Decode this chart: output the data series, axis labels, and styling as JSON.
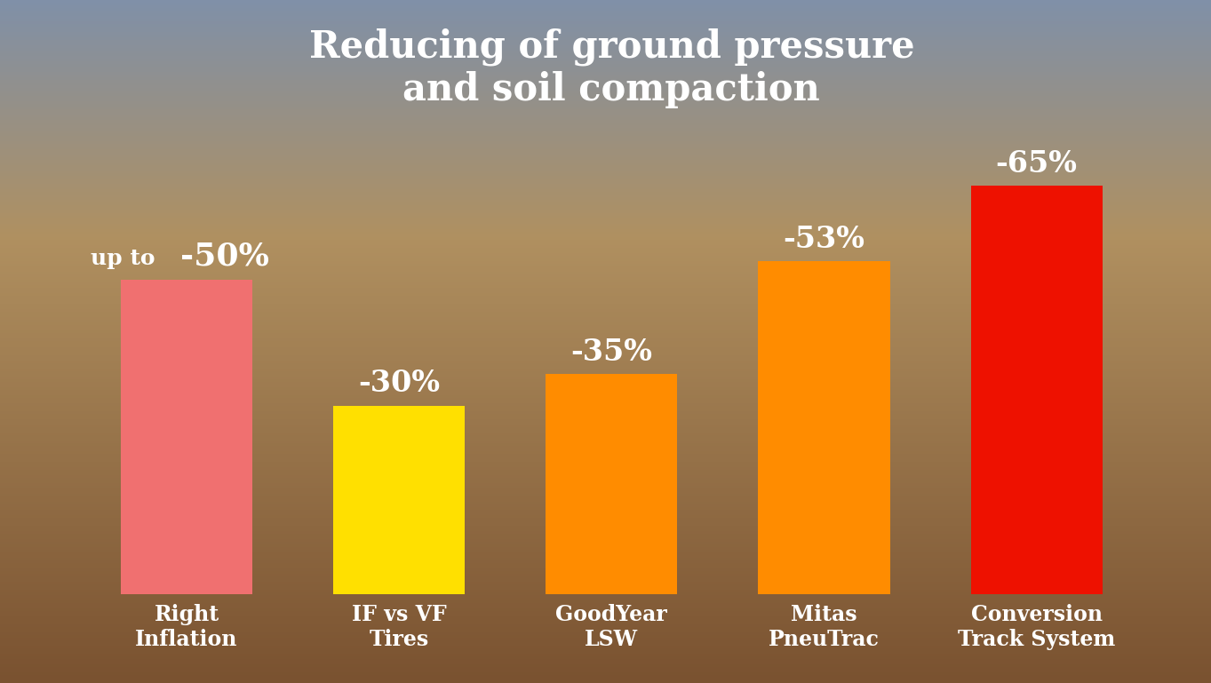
{
  "title_line1": "Reducing of ground pressure",
  "title_line2": "and soil compaction",
  "categories": [
    "Right\nInflation",
    "IF vs VF\nTires",
    "GoodYear\nLSW",
    "Mitas\nPneuTrac",
    "Conversion\nTrack System"
  ],
  "values": [
    50,
    30,
    35,
    53,
    65
  ],
  "labels_prefix": [
    "up to ",
    "",
    "",
    "",
    ""
  ],
  "labels_value": [
    "-50%",
    "-30%",
    "-35%",
    "-53%",
    "-65%"
  ],
  "bar_colors": [
    "#F07070",
    "#FFE000",
    "#FF8C00",
    "#FF8C00",
    "#EE1100"
  ],
  "bg_top_color": "#8090A8",
  "bg_mid_color": "#A08060",
  "bg_bot_color": "#8B6040",
  "title_color": "#FFFFFF",
  "label_color": "#FFFFFF",
  "xlabel_color": "#FFFFFF",
  "title_fontsize": 30,
  "label_fontsize": 24,
  "prefix_fontsize": 18,
  "xlabel_fontsize": 17,
  "ylim": [
    0,
    75
  ],
  "bar_width": 0.62,
  "figsize": [
    13.63,
    7.69
  ],
  "dpi": 100
}
